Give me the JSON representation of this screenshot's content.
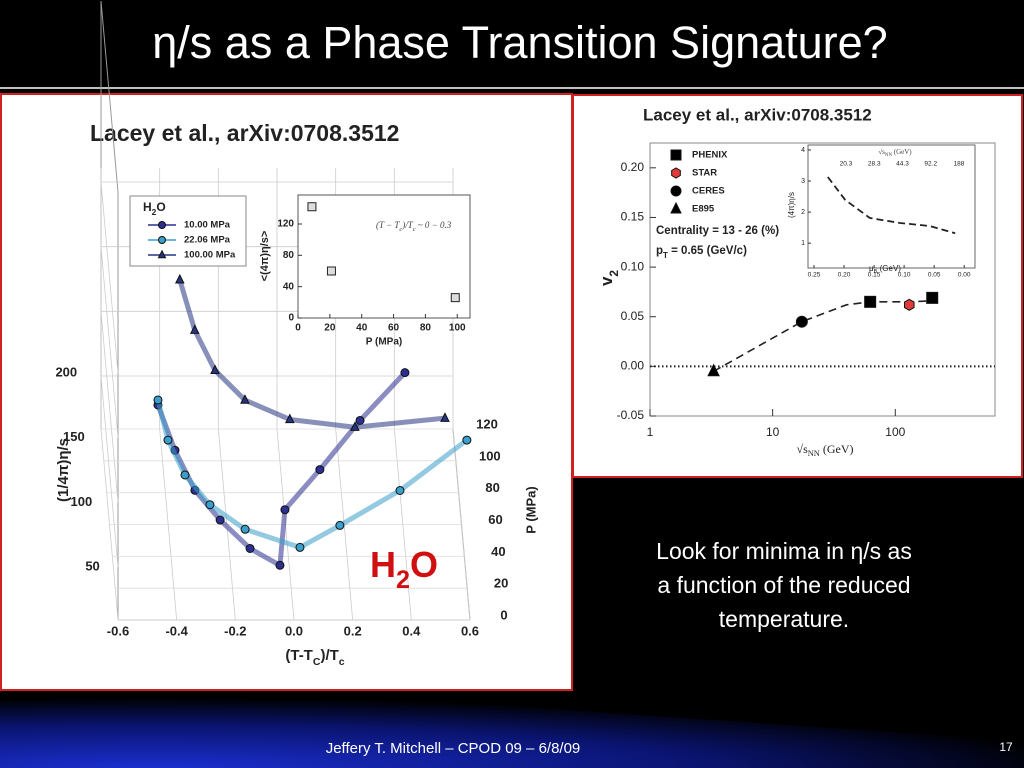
{
  "title": "η/s as a Phase Transition Signature?",
  "body": [
    "Look for minima in η/s as",
    "a function of the reduced",
    "temperature."
  ],
  "footer": {
    "text": "Jeffery T. Mitchell – CPOD 09 – 6/8/09",
    "page": "17"
  },
  "chart_data": [
    {
      "type": "line3d",
      "title": "Lacey et al., arXiv:0708.3512",
      "xlabel": [
        "(T-T",
        "C",
        ")/T",
        "c"
      ],
      "ylabel": "(1/4π)η/s",
      "zlabel": "P (MPa)",
      "xlim": [
        -0.6,
        0.6
      ],
      "xticks": [
        -0.6,
        -0.4,
        -0.2,
        {
          "value": 0,
          "label": "0.0"
        },
        0.2,
        0.4,
        0.6
      ],
      "ylim": [
        9,
        340
      ],
      "yticks": [
        50,
        100,
        150,
        200
      ],
      "zlim": [
        0,
        120
      ],
      "zticks": [
        0,
        20,
        40,
        60,
        80,
        100,
        120
      ],
      "legend_title": [
        "H",
        "2",
        "O"
      ],
      "series": [
        {
          "name": "10.00 MPa",
          "z": 10,
          "color": "#2b2f8f",
          "marker": "circle",
          "x": [
            -0.459,
            -0.401,
            -0.333,
            -0.247,
            -0.145,
            -0.043,
            -0.026,
            0.093,
            0.23,
            0.383
          ],
          "values": [
            163,
            128,
            97,
            74,
            52,
            39,
            82,
            113,
            151,
            188
          ]
        },
        {
          "name": "22.06 MPa",
          "z": 22.06,
          "color": "#3a9fcb",
          "marker": "circle",
          "x": [
            -0.453,
            -0.419,
            -0.361,
            -0.276,
            -0.156,
            0.031,
            0.167,
            0.372,
            0.6
          ],
          "values": [
            152,
            121,
            94,
            71,
            52,
            38,
            55,
            82,
            121
          ]
        },
        {
          "name": "100.00 MPa",
          "z": 100,
          "color": "#263582",
          "marker": "triangle",
          "x": [
            -0.341,
            -0.29,
            -0.221,
            -0.119,
            0.034,
            0.256,
            0.563
          ],
          "values": [
            149,
            110,
            79,
            56,
            41,
            35,
            42
          ]
        }
      ],
      "annotation": [
        "H",
        "2",
        "O"
      ],
      "inset": {
        "type": "scatter",
        "ylabel": "<(4π)η/s>",
        "xlabel": "P (MPa)",
        "annotation": [
          "(T − T",
          "c",
          ")/T",
          "c",
          "  ~ 0 − 0.3"
        ],
        "x": [
          8.75,
          21,
          98.75
        ],
        "values": [
          142,
          60,
          26
        ],
        "xlim": [
          0,
          108
        ],
        "ylim": [
          0,
          157
        ],
        "xticks": [
          0,
          20,
          40,
          60,
          80,
          100
        ],
        "yticks": [
          0,
          40,
          80,
          120
        ]
      }
    },
    {
      "type": "scatter",
      "title": "Lacey et al., arXiv:0708.3512",
      "xscale": "log",
      "xlim": [
        1,
        650
      ],
      "xticks": [
        1,
        10,
        100
      ],
      "ylim": [
        -0.05,
        0.225
      ],
      "yticks": [
        -0.05,
        {
          "value": 0,
          "label": "0.00"
        },
        0.05,
        {
          "value": 0.1,
          "label": "0.10"
        },
        0.15,
        {
          "value": 0.2,
          "label": "0.20"
        }
      ],
      "ylabel": [
        "v",
        "2"
      ],
      "xlabel": [
        "√s",
        "NN",
        "  (GeV)"
      ],
      "series": [
        {
          "name": "PHENIX",
          "color": "#000000",
          "marker": "square",
          "x": [
            62.4,
            200
          ],
          "values": [
            0.065,
            0.069
          ]
        },
        {
          "name": "STAR",
          "color": "#e03a3a",
          "marker": "hexagon",
          "x": [
            130
          ],
          "values": [
            0.062
          ]
        },
        {
          "name": "CERES",
          "color": "#000000",
          "marker": "circle",
          "x": [
            17.3
          ],
          "values": [
            0.045
          ]
        },
        {
          "name": "E895",
          "color": "#000000",
          "marker": "triangle",
          "x": [
            3.3
          ],
          "values": [
            -0.005
          ]
        }
      ],
      "fit": {
        "x": [
          3.3,
          17.3,
          40,
          62.4,
          130,
          200
        ],
        "values": [
          -0.005,
          0.045,
          0.062,
          0.065,
          0.065,
          0.066
        ]
      },
      "reference_line": 0,
      "annotations": [
        "Centrality = 13 - 26 (%)",
        [
          "p",
          "T",
          " = 0.65   (GeV/c)"
        ]
      ],
      "inset": {
        "type": "line",
        "ylabel": "(4π)η/s",
        "xlabel": [
          "μ",
          "B",
          " (GeV)"
        ],
        "x2label": [
          "√s",
          "NN",
          " (GeV)"
        ],
        "x": [
          0.227,
          0.198,
          0.157,
          0.107,
          0.057,
          0.015
        ],
        "values": [
          3.13,
          2.39,
          1.81,
          1.65,
          1.55,
          1.32
        ],
        "xlim": [
          0.26,
          -0.018
        ],
        "ylim": [
          0.2,
          4.16
        ],
        "xticks": [
          0.25,
          {
            "value": 0.2,
            "label": "0.20"
          },
          0.15,
          {
            "value": 0.1,
            "label": "0.10"
          },
          0.05,
          {
            "value": 0,
            "label": "0.00"
          }
        ],
        "yticks": [
          1,
          2,
          3,
          4
        ],
        "x2ticks": [
          20.3,
          28.3,
          44.3,
          92.2,
          188
        ]
      }
    }
  ]
}
